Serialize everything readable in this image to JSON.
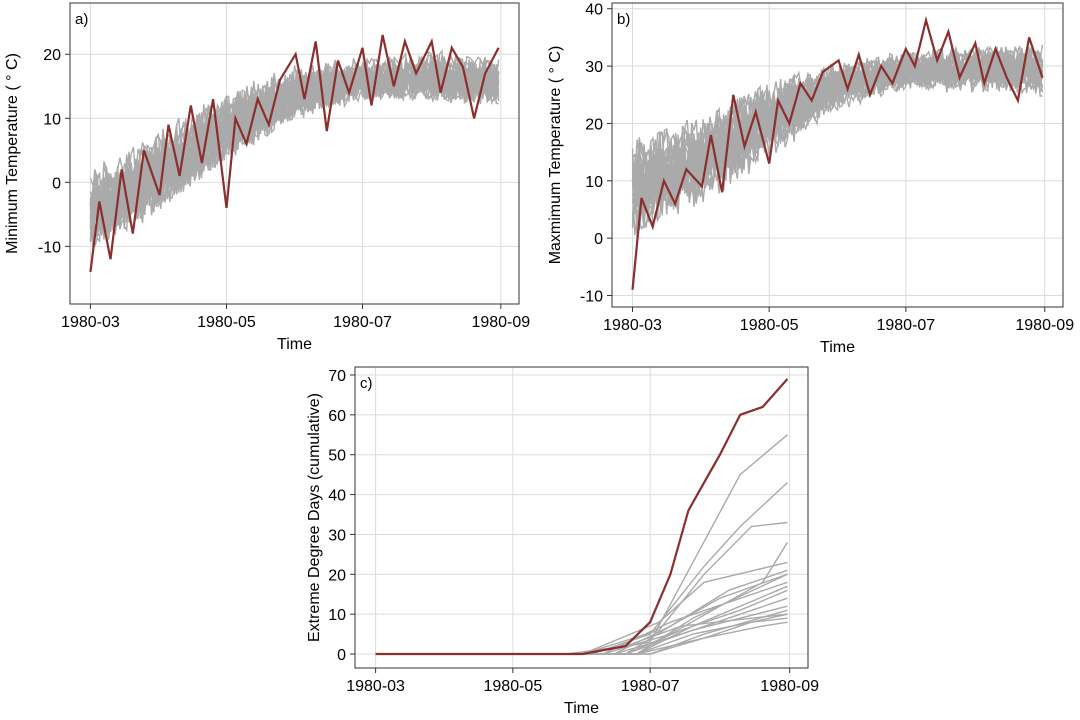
{
  "colors": {
    "ensemble": "#aaaaaa",
    "highlight": "#8b2e2e",
    "grid": "#dcdcdc"
  },
  "chart_data": [
    {
      "type": "line",
      "panel_label": "a)",
      "xlabel": "Time",
      "ylabel": "Minimum Temperature ($^\\circ$C)",
      "ylabel_display": "Minimum Temperature ( ° C)",
      "x_ticks": [
        "1980-03",
        "1980-05",
        "1980-07",
        "1980-09"
      ],
      "x_range": [
        "1980-03-01",
        "1980-08-31"
      ],
      "y_ticks": [
        -10,
        0,
        10,
        20
      ],
      "ylim": [
        -19,
        28
      ],
      "grid": true,
      "ensemble_members": 25,
      "ensemble_band": {
        "x": [
          "1980-03-01",
          "1980-04-01",
          "1980-05-01",
          "1980-06-01",
          "1980-07-01",
          "1980-08-01",
          "1980-08-31"
        ],
        "low": [
          -12,
          -6,
          2,
          9,
          12,
          12,
          11
        ],
        "high": [
          3,
          9,
          15,
          19,
          20,
          21,
          20
        ]
      },
      "series": [
        {
          "role": "highlight",
          "x": [
            "1980-03-01",
            "1980-03-05",
            "1980-03-10",
            "1980-03-15",
            "1980-03-20",
            "1980-03-25",
            "1980-04-01",
            "1980-04-05",
            "1980-04-10",
            "1980-04-15",
            "1980-04-20",
            "1980-04-25",
            "1980-05-01",
            "1980-05-05",
            "1980-05-10",
            "1980-05-15",
            "1980-05-20",
            "1980-05-25",
            "1980-06-01",
            "1980-06-05",
            "1980-06-10",
            "1980-06-15",
            "1980-06-20",
            "1980-06-25",
            "1980-07-01",
            "1980-07-05",
            "1980-07-10",
            "1980-07-15",
            "1980-07-20",
            "1980-07-25",
            "1980-08-01",
            "1980-08-05",
            "1980-08-10",
            "1980-08-15",
            "1980-08-20",
            "1980-08-25",
            "1980-08-31"
          ],
          "values": [
            -14,
            -3,
            -12,
            2,
            -8,
            5,
            -2,
            9,
            1,
            12,
            3,
            13,
            -4,
            10,
            6,
            13,
            9,
            16,
            20,
            13,
            22,
            8,
            19,
            14,
            21,
            12,
            23,
            15,
            22,
            17,
            22,
            14,
            21,
            18,
            10,
            17,
            21
          ]
        }
      ]
    },
    {
      "type": "line",
      "panel_label": "b)",
      "xlabel": "Time",
      "ylabel": "Maxmimum Temperature ($^\\circ$C)",
      "ylabel_display": "Maxmimum Temperature ( ° C)",
      "x_ticks": [
        "1980-03",
        "1980-05",
        "1980-07",
        "1980-09"
      ],
      "x_range": [
        "1980-03-01",
        "1980-08-31"
      ],
      "y_ticks": [
        -10,
        0,
        10,
        20,
        30,
        40
      ],
      "ylim": [
        -12,
        41
      ],
      "grid": true,
      "ensemble_members": 25,
      "ensemble_band": {
        "x": [
          "1980-03-01",
          "1980-04-01",
          "1980-05-01",
          "1980-06-01",
          "1980-07-01",
          "1980-08-01",
          "1980-08-31"
        ],
        "low": [
          -2,
          5,
          13,
          22,
          25,
          25,
          24
        ],
        "high": [
          18,
          22,
          28,
          31,
          33,
          34,
          34
        ]
      },
      "series": [
        {
          "role": "highlight",
          "x": [
            "1980-03-01",
            "1980-03-05",
            "1980-03-10",
            "1980-03-15",
            "1980-03-20",
            "1980-03-25",
            "1980-04-01",
            "1980-04-05",
            "1980-04-10",
            "1980-04-15",
            "1980-04-20",
            "1980-04-25",
            "1980-05-01",
            "1980-05-05",
            "1980-05-10",
            "1980-05-15",
            "1980-05-20",
            "1980-05-25",
            "1980-06-01",
            "1980-06-05",
            "1980-06-10",
            "1980-06-15",
            "1980-06-20",
            "1980-06-25",
            "1980-07-01",
            "1980-07-05",
            "1980-07-10",
            "1980-07-15",
            "1980-07-20",
            "1980-07-25",
            "1980-08-01",
            "1980-08-05",
            "1980-08-10",
            "1980-08-15",
            "1980-08-20",
            "1980-08-25",
            "1980-08-31"
          ],
          "values": [
            -9,
            7,
            2,
            10,
            6,
            12,
            9,
            18,
            8,
            25,
            16,
            22,
            13,
            24,
            20,
            27,
            24,
            29,
            31,
            26,
            32,
            25,
            30,
            27,
            33,
            30,
            38,
            31,
            36,
            28,
            34,
            27,
            33,
            28,
            24,
            35,
            28
          ]
        }
      ]
    },
    {
      "type": "line",
      "panel_label": "c)",
      "xlabel": "Time",
      "ylabel": "Extreme Degree Days (cumulative)",
      "x_ticks": [
        "1980-03",
        "1980-05",
        "1980-07",
        "1980-09"
      ],
      "x_range": [
        "1980-03-01",
        "1980-08-31"
      ],
      "y_ticks": [
        0,
        10,
        20,
        30,
        40,
        50,
        60,
        70
      ],
      "ylim": [
        -3.5,
        72
      ],
      "grid": true,
      "series": [
        {
          "role": "highlight",
          "x": [
            "1980-03-01",
            "1980-06-01",
            "1980-06-20",
            "1980-07-01",
            "1980-07-10",
            "1980-07-18",
            "1980-07-25",
            "1980-08-01",
            "1980-08-10",
            "1980-08-20",
            "1980-08-31"
          ],
          "values": [
            0,
            0,
            2,
            8,
            20,
            36,
            43,
            50,
            60,
            62,
            69
          ]
        },
        {
          "role": "ensemble",
          "x": [
            "1980-03-01",
            "1980-06-01",
            "1980-07-01",
            "1980-07-20",
            "1980-08-10",
            "1980-08-31"
          ],
          "values": [
            0,
            0,
            3,
            23,
            45,
            55
          ]
        },
        {
          "role": "ensemble",
          "x": [
            "1980-03-01",
            "1980-06-05",
            "1980-07-01",
            "1980-07-25",
            "1980-08-10",
            "1980-08-31"
          ],
          "values": [
            0,
            0,
            5,
            22,
            32,
            43
          ]
        },
        {
          "role": "ensemble",
          "x": [
            "1980-03-01",
            "1980-06-01",
            "1980-07-05",
            "1980-07-25",
            "1980-08-15",
            "1980-08-31"
          ],
          "values": [
            0,
            0,
            6,
            20,
            32,
            33
          ]
        },
        {
          "role": "ensemble",
          "x": [
            "1980-03-01",
            "1980-06-10",
            "1980-07-10",
            "1980-08-01",
            "1980-08-20",
            "1980-08-31"
          ],
          "values": [
            0,
            0,
            5,
            12,
            18,
            28
          ]
        },
        {
          "role": "ensemble",
          "x": [
            "1980-03-01",
            "1980-06-01",
            "1980-07-05",
            "1980-07-25",
            "1980-08-31"
          ],
          "values": [
            0,
            0,
            8,
            18,
            23
          ]
        },
        {
          "role": "ensemble",
          "x": [
            "1980-03-01",
            "1980-06-15",
            "1980-07-10",
            "1980-08-01",
            "1980-08-31"
          ],
          "values": [
            0,
            0,
            7,
            14,
            20
          ]
        },
        {
          "role": "ensemble",
          "x": [
            "1980-03-01",
            "1980-06-10",
            "1980-07-10",
            "1980-08-05",
            "1980-08-31"
          ],
          "values": [
            0,
            0,
            8,
            13,
            18
          ]
        },
        {
          "role": "ensemble",
          "x": [
            "1980-03-01",
            "1980-06-20",
            "1980-07-15",
            "1980-08-10",
            "1980-08-31"
          ],
          "values": [
            0,
            0,
            6,
            11,
            16
          ]
        },
        {
          "role": "ensemble",
          "x": [
            "1980-03-01",
            "1980-06-15",
            "1980-07-15",
            "1980-08-10",
            "1980-08-31"
          ],
          "values": [
            0,
            0,
            5,
            10,
            14
          ]
        },
        {
          "role": "ensemble",
          "x": [
            "1980-03-01",
            "1980-06-20",
            "1980-07-20",
            "1980-08-10",
            "1980-08-31"
          ],
          "values": [
            0,
            0,
            6,
            9,
            12
          ]
        },
        {
          "role": "ensemble",
          "x": [
            "1980-03-01",
            "1980-06-25",
            "1980-07-20",
            "1980-08-15",
            "1980-08-31"
          ],
          "values": [
            0,
            0,
            5,
            8,
            10
          ]
        },
        {
          "role": "ensemble",
          "x": [
            "1980-03-01",
            "1980-06-25",
            "1980-07-25",
            "1980-08-15",
            "1980-08-31"
          ],
          "values": [
            0,
            0,
            4,
            8,
            9
          ]
        },
        {
          "role": "ensemble",
          "x": [
            "1980-03-01",
            "1980-07-01",
            "1980-07-25",
            "1980-08-20",
            "1980-08-31"
          ],
          "values": [
            0,
            0,
            4,
            7,
            8
          ]
        },
        {
          "role": "ensemble",
          "x": [
            "1980-03-01",
            "1980-05-25",
            "1980-06-20",
            "1980-07-15",
            "1980-08-31"
          ],
          "values": [
            0,
            0,
            2,
            7,
            10
          ]
        },
        {
          "role": "ensemble",
          "x": [
            "1980-03-01",
            "1980-06-20",
            "1980-07-10",
            "1980-08-05",
            "1980-08-31"
          ],
          "values": [
            0,
            0,
            7,
            16,
            21
          ]
        },
        {
          "role": "ensemble",
          "x": [
            "1980-03-01",
            "1980-06-25",
            "1980-07-20",
            "1980-08-31"
          ],
          "values": [
            0,
            0,
            7,
            17
          ]
        },
        {
          "role": "ensemble",
          "x": [
            "1980-03-01",
            "1980-07-01",
            "1980-07-25",
            "1980-08-31"
          ],
          "values": [
            0,
            0,
            5,
            11
          ]
        },
        {
          "role": "ensemble",
          "x": [
            "1980-03-01",
            "1980-06-25",
            "1980-07-20",
            "1980-08-31"
          ],
          "values": [
            0,
            0,
            9,
            20
          ]
        }
      ]
    }
  ]
}
